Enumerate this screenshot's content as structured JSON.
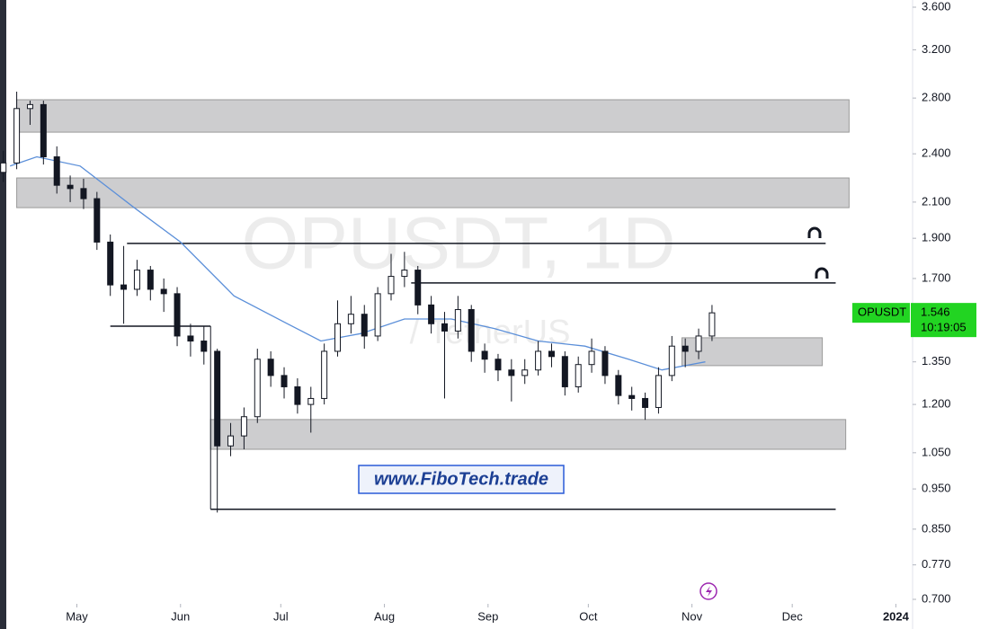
{
  "chart_data": {
    "type": "candlestick",
    "title": "OPUSDT, 1D",
    "subtitle": "/ TetherUS",
    "x": [
      -22,
      -18,
      -14,
      -10,
      -6,
      -2,
      2,
      6,
      10,
      14,
      18,
      22,
      26,
      30,
      34,
      38,
      42,
      46,
      50,
      54,
      58,
      62,
      66,
      70,
      74,
      78,
      82,
      86,
      90,
      94,
      98,
      102,
      106,
      110,
      114,
      118,
      122,
      126,
      130,
      134,
      138,
      142,
      146,
      150,
      154,
      158,
      162,
      166,
      170,
      174,
      178,
      182,
      186,
      190
    ],
    "open": [
      2.28,
      2.34,
      2.72,
      2.75,
      2.38,
      2.2,
      2.18,
      2.12,
      1.88,
      1.67,
      1.65,
      1.74,
      1.65,
      1.63,
      1.45,
      1.43,
      1.39,
      1.07,
      1.1,
      1.16,
      1.36,
      1.3,
      1.26,
      1.2,
      1.22,
      1.39,
      1.5,
      1.54,
      1.45,
      1.63,
      1.71,
      1.74,
      1.58,
      1.5,
      1.47,
      1.56,
      1.39,
      1.36,
      1.32,
      1.3,
      1.32,
      1.39,
      1.37,
      1.26,
      1.34,
      1.39,
      1.3,
      1.23,
      1.22,
      1.19,
      1.3,
      1.41,
      1.39,
      1.45
    ],
    "high": [
      2.42,
      2.85,
      2.78,
      2.78,
      2.45,
      2.26,
      2.24,
      2.16,
      1.92,
      1.86,
      1.79,
      1.76,
      1.7,
      1.66,
      1.5,
      1.49,
      1.4,
      1.14,
      1.19,
      1.4,
      1.39,
      1.33,
      1.29,
      1.26,
      1.42,
      1.6,
      1.62,
      1.58,
      1.66,
      1.82,
      1.83,
      1.76,
      1.62,
      1.55,
      1.62,
      1.58,
      1.42,
      1.38,
      1.36,
      1.36,
      1.43,
      1.42,
      1.39,
      1.37,
      1.44,
      1.41,
      1.32,
      1.26,
      1.24,
      1.33,
      1.45,
      1.44,
      1.48,
      1.58
    ],
    "low": [
      2.22,
      2.3,
      2.6,
      2.33,
      2.15,
      2.1,
      2.06,
      1.84,
      1.62,
      1.5,
      1.62,
      1.6,
      1.55,
      1.41,
      1.37,
      1.34,
      0.89,
      1.04,
      1.06,
      1.14,
      1.26,
      1.22,
      1.17,
      1.11,
      1.2,
      1.37,
      1.46,
      1.4,
      1.43,
      1.6,
      1.66,
      1.54,
      1.46,
      1.22,
      1.44,
      1.35,
      1.31,
      1.28,
      1.21,
      1.27,
      1.3,
      1.33,
      1.23,
      1.24,
      1.31,
      1.27,
      1.2,
      1.18,
      1.15,
      1.17,
      1.28,
      1.33,
      1.36,
      1.43
    ],
    "close": [
      2.34,
      2.72,
      2.75,
      2.38,
      2.2,
      2.18,
      2.12,
      1.88,
      1.67,
      1.65,
      1.74,
      1.65,
      1.63,
      1.45,
      1.43,
      1.39,
      1.07,
      1.1,
      1.16,
      1.36,
      1.3,
      1.26,
      1.2,
      1.22,
      1.39,
      1.5,
      1.54,
      1.45,
      1.63,
      1.71,
      1.74,
      1.58,
      1.5,
      1.47,
      1.56,
      1.39,
      1.36,
      1.32,
      1.3,
      1.32,
      1.39,
      1.37,
      1.26,
      1.34,
      1.39,
      1.3,
      1.23,
      1.22,
      1.19,
      1.3,
      1.41,
      1.39,
      1.45,
      1.546
    ],
    "color": "#131722",
    "ma": {
      "x": [
        -20,
        -12,
        1,
        17,
        31,
        47,
        63,
        73,
        85,
        98,
        112,
        125,
        138,
        152,
        165,
        175,
        188
      ],
      "values": [
        2.32,
        2.38,
        2.32,
        2.07,
        1.88,
        1.62,
        1.5,
        1.43,
        1.46,
        1.52,
        1.52,
        1.48,
        1.43,
        1.41,
        1.36,
        1.32,
        1.35
      ],
      "color": "#5b8fd9"
    },
    "zones": [
      {
        "x": [
          -18,
          231
        ],
        "y": [
          2.548,
          2.787
        ]
      },
      {
        "x": [
          -18,
          231
        ],
        "y": [
          2.068,
          2.245
        ]
      },
      {
        "x": [
          181,
          223
        ],
        "y": [
          1.336,
          1.443
        ]
      },
      {
        "x": [
          40,
          230
        ],
        "y": [
          1.06,
          1.151
        ]
      }
    ],
    "levels": [
      {
        "x": [
          15,
          224
        ],
        "value": 1.873
      },
      {
        "x": [
          100,
          227
        ],
        "value": 1.679
      },
      {
        "x": [
          10,
          40
        ],
        "value": 1.49
      },
      {
        "x": [
          40,
          227
        ],
        "value": 0.898
      }
    ],
    "symbol_label": "OPUSDT",
    "countdown": "10:19:05",
    "website": "www.FiboTech.trade",
    "log_scale": true,
    "grid": false,
    "xlim": [
      -23,
      250
    ],
    "ylim": [
      0.7,
      3.6
    ],
    "xticks": [
      {
        "value": 0,
        "label": "May"
      },
      {
        "value": 31,
        "label": "Jun"
      },
      {
        "value": 61,
        "label": "Jul"
      },
      {
        "value": 92,
        "label": "Aug"
      },
      {
        "value": 123,
        "label": "Sep"
      },
      {
        "value": 153,
        "label": "Oct"
      },
      {
        "value": 184,
        "label": "Nov"
      },
      {
        "value": 214,
        "label": "Dec"
      },
      {
        "value": 245,
        "label": "2024"
      }
    ],
    "yticks": [
      {
        "value": 3.6,
        "label": "3.600"
      },
      {
        "value": 3.2,
        "label": "3.200"
      },
      {
        "value": 2.8,
        "label": "2.800"
      },
      {
        "value": 2.4,
        "label": "2.400"
      },
      {
        "value": 2.1,
        "label": "2.100"
      },
      {
        "value": 1.9,
        "label": "1.900"
      },
      {
        "value": 1.7,
        "label": "1.700"
      },
      {
        "value": 1.35,
        "label": "1.350"
      },
      {
        "value": 1.2,
        "label": "1.200"
      },
      {
        "value": 1.05,
        "label": "1.050"
      },
      {
        "value": 0.95,
        "label": "0.950"
      },
      {
        "value": 0.85,
        "label": "0.850"
      },
      {
        "value": 0.77,
        "label": "0.770"
      },
      {
        "value": 0.7,
        "label": "0.700"
      }
    ]
  }
}
